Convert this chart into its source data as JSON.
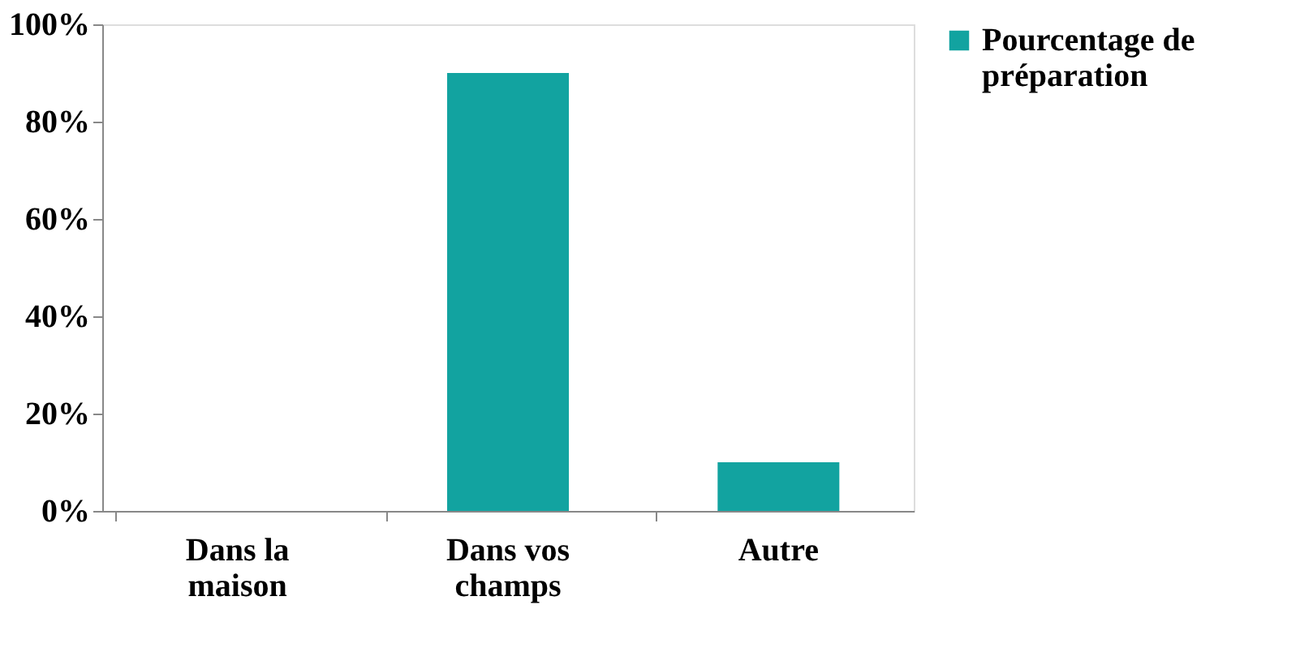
{
  "chart_data": {
    "type": "bar",
    "categories": [
      "Dans la\nmaison",
      "Dans  vos\nchamps",
      "Autre"
    ],
    "series": [
      {
        "name": "Pourcentage de\npréparation",
        "color": "#12a3a0",
        "values": [
          0,
          90,
          10
        ]
      }
    ],
    "ylim": [
      0,
      100
    ],
    "yticks": [
      {
        "value": 0,
        "label": "0%"
      },
      {
        "value": 20,
        "label": "20%"
      },
      {
        "value": 40,
        "label": "40%"
      },
      {
        "value": 60,
        "label": "60%"
      },
      {
        "value": 80,
        "label": "80%"
      },
      {
        "value": 100,
        "label": "100%"
      }
    ],
    "grid": false,
    "legend": "right"
  }
}
